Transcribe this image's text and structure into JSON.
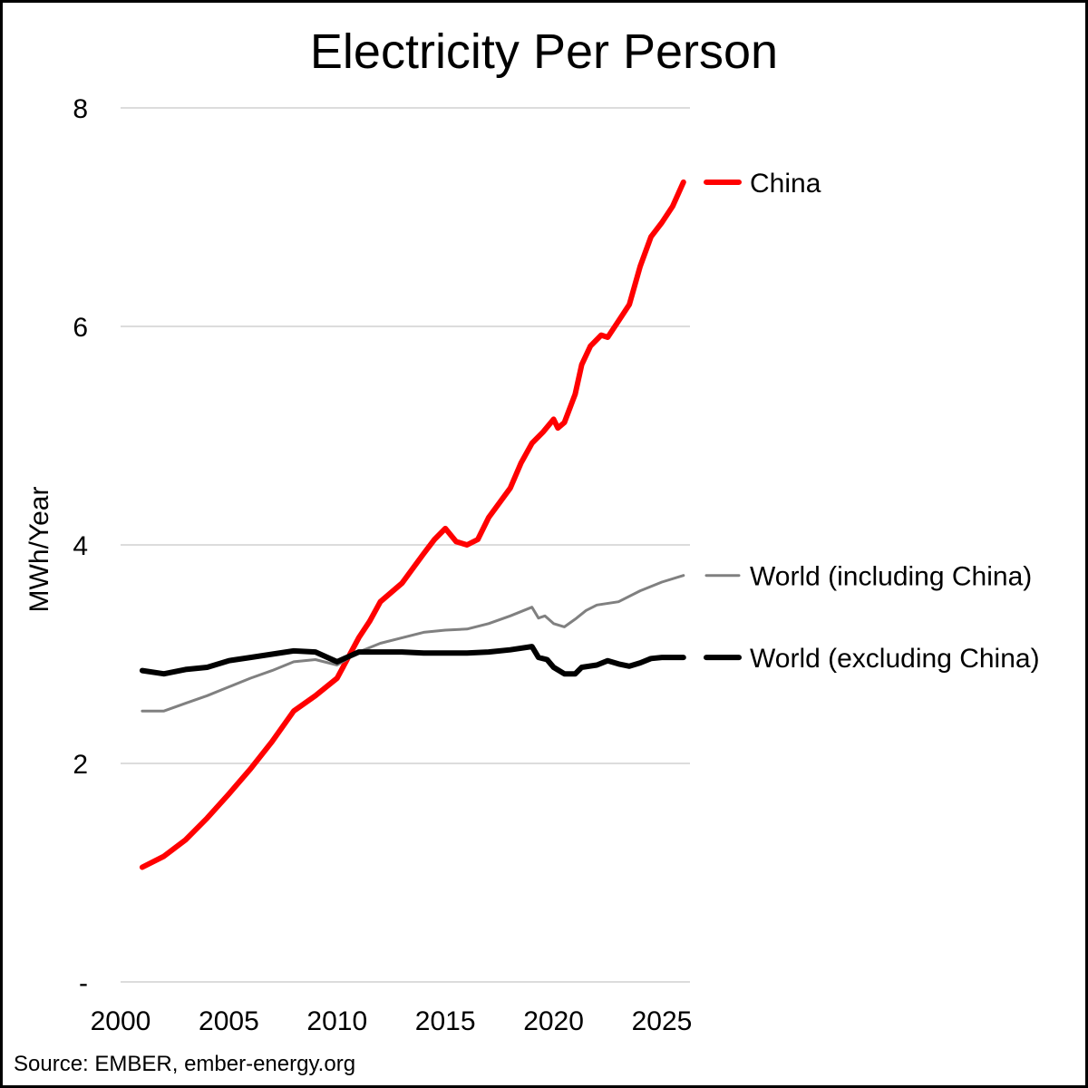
{
  "chart_data": {
    "type": "line",
    "title": "Electricity Per Person",
    "ylabel": "MWh/Year",
    "xlabel": "",
    "source": "Source: EMBER, ember-energy.org",
    "xlim": [
      2000,
      2026.3
    ],
    "ylim": [
      0,
      8
    ],
    "x_ticks": [
      {
        "value": 2000,
        "label": "2000"
      },
      {
        "value": 2005,
        "label": "2005"
      },
      {
        "value": 2010,
        "label": "2010"
      },
      {
        "value": 2015,
        "label": "2015"
      },
      {
        "value": 2020,
        "label": "2020"
      },
      {
        "value": 2025,
        "label": "2025"
      }
    ],
    "y_ticks": [
      {
        "value": 0,
        "label": "-"
      },
      {
        "value": 2,
        "label": "2"
      },
      {
        "value": 4,
        "label": "4"
      },
      {
        "value": 6,
        "label": "6"
      },
      {
        "value": 8,
        "label": "8"
      }
    ],
    "grid": true,
    "legend_placement": "right",
    "series": [
      {
        "name": "China",
        "color": "#ff0000",
        "width": 6,
        "points": [
          [
            2001,
            1.05
          ],
          [
            2002,
            1.15
          ],
          [
            2003,
            1.3
          ],
          [
            2004,
            1.5
          ],
          [
            2005,
            1.72
          ],
          [
            2006,
            1.95
          ],
          [
            2007,
            2.2
          ],
          [
            2008,
            2.48
          ],
          [
            2009,
            2.62
          ],
          [
            2010,
            2.78
          ],
          [
            2011,
            3.15
          ],
          [
            2011.5,
            3.3
          ],
          [
            2012,
            3.48
          ],
          [
            2013,
            3.65
          ],
          [
            2014,
            3.92
          ],
          [
            2014.5,
            4.05
          ],
          [
            2015,
            4.15
          ],
          [
            2015.5,
            4.03
          ],
          [
            2016,
            4.0
          ],
          [
            2016.5,
            4.05
          ],
          [
            2017,
            4.25
          ],
          [
            2018,
            4.52
          ],
          [
            2018.5,
            4.75
          ],
          [
            2019,
            4.93
          ],
          [
            2019.5,
            5.03
          ],
          [
            2020,
            5.15
          ],
          [
            2020.2,
            5.07
          ],
          [
            2020.5,
            5.12
          ],
          [
            2021,
            5.38
          ],
          [
            2021.3,
            5.65
          ],
          [
            2021.7,
            5.82
          ],
          [
            2022,
            5.88
          ],
          [
            2022.2,
            5.92
          ],
          [
            2022.5,
            5.9
          ],
          [
            2023,
            6.05
          ],
          [
            2023.5,
            6.2
          ],
          [
            2024,
            6.55
          ],
          [
            2024.5,
            6.82
          ],
          [
            2025,
            6.95
          ],
          [
            2025.5,
            7.1
          ],
          [
            2026,
            7.32
          ]
        ]
      },
      {
        "name": "World (including China)",
        "color": "#808080",
        "width": 3,
        "points": [
          [
            2001,
            2.48
          ],
          [
            2002,
            2.48
          ],
          [
            2003,
            2.55
          ],
          [
            2004,
            2.62
          ],
          [
            2005,
            2.7
          ],
          [
            2006,
            2.78
          ],
          [
            2007,
            2.85
          ],
          [
            2008,
            2.93
          ],
          [
            2009,
            2.95
          ],
          [
            2010,
            2.9
          ],
          [
            2011,
            3.02
          ],
          [
            2012,
            3.1
          ],
          [
            2013,
            3.15
          ],
          [
            2014,
            3.2
          ],
          [
            2015,
            3.22
          ],
          [
            2016,
            3.23
          ],
          [
            2017,
            3.28
          ],
          [
            2018,
            3.35
          ],
          [
            2019,
            3.43
          ],
          [
            2019.3,
            3.33
          ],
          [
            2019.6,
            3.35
          ],
          [
            2020,
            3.28
          ],
          [
            2020.5,
            3.25
          ],
          [
            2021,
            3.32
          ],
          [
            2021.5,
            3.4
          ],
          [
            2022,
            3.45
          ],
          [
            2023,
            3.48
          ],
          [
            2024,
            3.58
          ],
          [
            2025,
            3.66
          ],
          [
            2026,
            3.72
          ]
        ]
      },
      {
        "name": "World (excluding China)",
        "color": "#000000",
        "width": 6,
        "points": [
          [
            2001,
            2.85
          ],
          [
            2002,
            2.82
          ],
          [
            2003,
            2.86
          ],
          [
            2004,
            2.88
          ],
          [
            2005,
            2.94
          ],
          [
            2006,
            2.97
          ],
          [
            2007,
            3.0
          ],
          [
            2008,
            3.03
          ],
          [
            2009,
            3.02
          ],
          [
            2010,
            2.93
          ],
          [
            2011,
            3.02
          ],
          [
            2012,
            3.02
          ],
          [
            2013,
            3.02
          ],
          [
            2014,
            3.01
          ],
          [
            2015,
            3.01
          ],
          [
            2016,
            3.01
          ],
          [
            2017,
            3.02
          ],
          [
            2018,
            3.04
          ],
          [
            2019,
            3.07
          ],
          [
            2019.3,
            2.97
          ],
          [
            2019.7,
            2.95
          ],
          [
            2020,
            2.88
          ],
          [
            2020.5,
            2.82
          ],
          [
            2021,
            2.82
          ],
          [
            2021.3,
            2.88
          ],
          [
            2022,
            2.9
          ],
          [
            2022.5,
            2.94
          ],
          [
            2023,
            2.91
          ],
          [
            2023.5,
            2.89
          ],
          [
            2024,
            2.92
          ],
          [
            2024.5,
            2.96
          ],
          [
            2025,
            2.97
          ],
          [
            2026,
            2.97
          ]
        ]
      }
    ]
  }
}
